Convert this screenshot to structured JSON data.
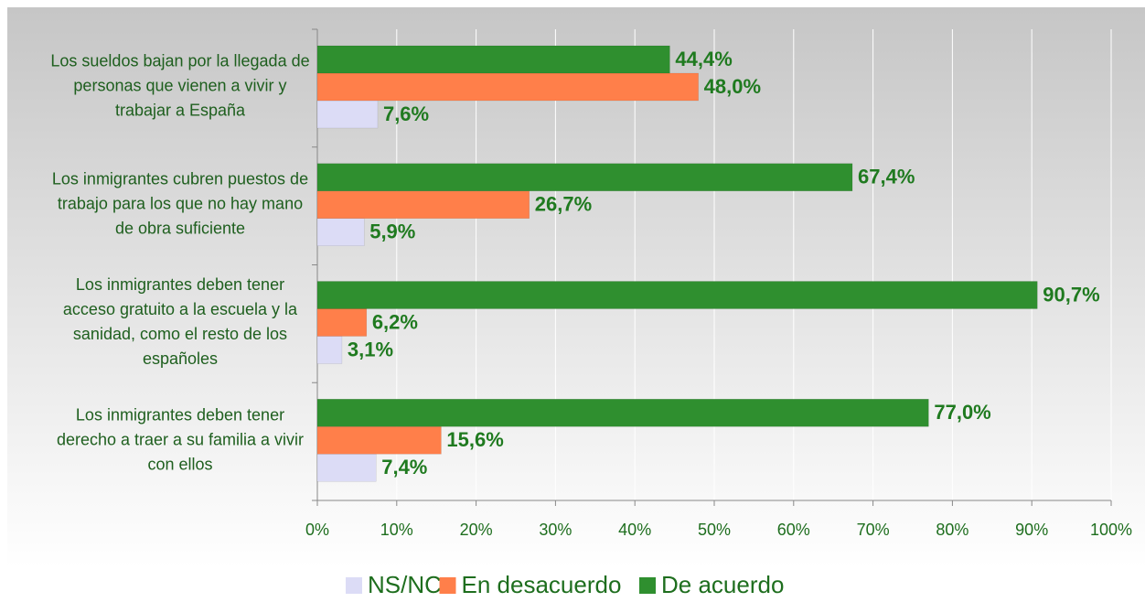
{
  "chart_data": {
    "type": "hbar",
    "categories": [
      "Los sueldos bajan por la llegada de personas que vienen a vivir y trabajar a España",
      "Los inmigrantes cubren puestos de trabajo para los que no hay mano de obra suficiente",
      "Los inmigrantes deben tener acceso gratuito a la escuela y la sanidad, como el resto de los españoles",
      "Los inmigrantes deben tener derecho a traer a su familia a vivir con ellos"
    ],
    "series": [
      {
        "name": "NS/NC",
        "color": "#dcdcf6",
        "values": [
          7.6,
          5.9,
          3.1,
          7.4
        ],
        "value_labels": [
          "7,6%",
          "5,9%",
          "3,1%",
          "7,4%"
        ]
      },
      {
        "name": "En desacuerdo",
        "color": "#ff7f4a",
        "values": [
          48.0,
          26.7,
          6.2,
          15.6
        ],
        "value_labels": [
          "48,0%",
          "26,7%",
          "6,2%",
          "15,6%"
        ]
      },
      {
        "name": "De acuerdo",
        "color": "#2f8f2f",
        "values": [
          44.4,
          67.4,
          90.7,
          77.0
        ],
        "value_labels": [
          "44,4%",
          "67,4%",
          "90,7%",
          "77,0%"
        ]
      }
    ],
    "xlim": [
      0,
      100
    ],
    "xticks": [
      {
        "value": 0,
        "label": "0%"
      },
      {
        "value": 10,
        "label": "10%"
      },
      {
        "value": 20,
        "label": "20%"
      },
      {
        "value": 30,
        "label": "30%"
      },
      {
        "value": 40,
        "label": "40%"
      },
      {
        "value": 50,
        "label": "50%"
      },
      {
        "value": 60,
        "label": "60%"
      },
      {
        "value": 70,
        "label": "70%"
      },
      {
        "value": 80,
        "label": "80%"
      },
      {
        "value": 90,
        "label": "90%"
      },
      {
        "value": 100,
        "label": "100%"
      }
    ],
    "grid": true,
    "legend": "bottom"
  }
}
